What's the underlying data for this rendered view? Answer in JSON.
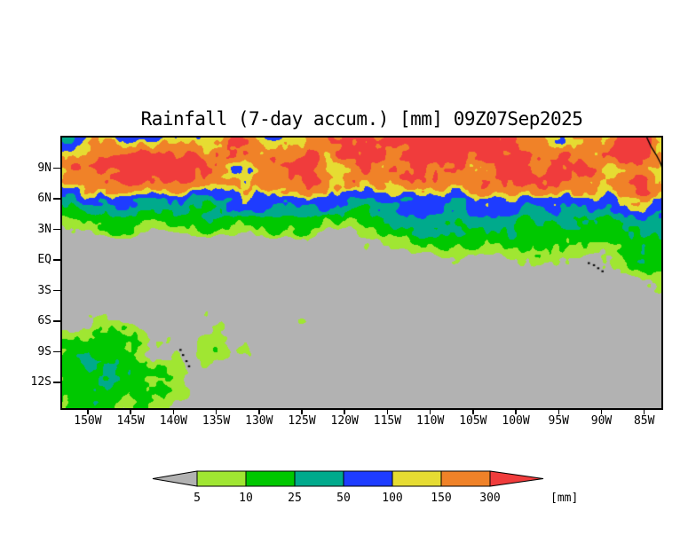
{
  "title": "Rainfall (7-day accum.) [mm] 09Z07Sep2025",
  "colors": {
    "page_bg": "#ffffff",
    "map_bg": "#b2b2b2",
    "frame": "#000000",
    "text": "#000000"
  },
  "axes": {
    "lat_ticks": [
      {
        "label": "9N",
        "lat": 9
      },
      {
        "label": "6N",
        "lat": 6
      },
      {
        "label": "3N",
        "lat": 3
      },
      {
        "label": "EQ",
        "lat": 0
      },
      {
        "label": "3S",
        "lat": -3
      },
      {
        "label": "6S",
        "lat": -6
      },
      {
        "label": "9S",
        "lat": -9
      },
      {
        "label": "12S",
        "lat": -12
      }
    ],
    "lon_ticks": [
      {
        "label": "150W",
        "lon": -150
      },
      {
        "label": "145W",
        "lon": -145
      },
      {
        "label": "140W",
        "lon": -140
      },
      {
        "label": "135W",
        "lon": -135
      },
      {
        "label": "130W",
        "lon": -130
      },
      {
        "label": "125W",
        "lon": -125
      },
      {
        "label": "120W",
        "lon": -120
      },
      {
        "label": "115W",
        "lon": -115
      },
      {
        "label": "110W",
        "lon": -110
      },
      {
        "label": "105W",
        "lon": -105
      },
      {
        "label": "100W",
        "lon": -100
      },
      {
        "label": "95W",
        "lon": -95
      },
      {
        "label": "90W",
        "lon": -90
      },
      {
        "label": "85W",
        "lon": -85
      }
    ]
  },
  "chart_data": {
    "type": "heatmap",
    "title": "Rainfall (7-day accum.) [mm] 09Z07Sep2025",
    "variable": "Rainfall (7-day accum.)",
    "units": "mm",
    "valid_time": "09Z07Sep2025",
    "lon_range": [
      -153,
      -83
    ],
    "lat_range": [
      -14.5,
      12
    ],
    "grid_on": false,
    "levels_mm": [
      5,
      10,
      25,
      50,
      100,
      150,
      300
    ],
    "palette": [
      {
        "range": "< 5",
        "color": "#b2b2b2"
      },
      {
        "range": "5-10",
        "color": "#a0e632"
      },
      {
        "range": "10-25",
        "color": "#00c800"
      },
      {
        "range": "25-50",
        "color": "#00aa8c"
      },
      {
        "range": "50-100",
        "color": "#1e3cff"
      },
      {
        "range": "100-150",
        "color": "#e6dc32"
      },
      {
        "range": "150-300",
        "color": "#f08228"
      },
      {
        "range": "> 300",
        "color": "#f03c3c"
      }
    ],
    "colorbar": {
      "labels": [
        "5",
        "10",
        "25",
        "50",
        "100",
        "150",
        "300"
      ],
      "units_label": "[mm]"
    },
    "grid": {
      "lon_start": -153,
      "lon_step": 5,
      "lat_start": 12,
      "lat_step": -2,
      "values_mm": [
        [
          70,
          180,
          90,
          200,
          160,
          120,
          250,
          300,
          200,
          350,
          400,
          300,
          250,
          300,
          250
        ],
        [
          150,
          250,
          350,
          280,
          220,
          320,
          280,
          350,
          300,
          400,
          450,
          350,
          300,
          400,
          350
        ],
        [
          90,
          180,
          280,
          320,
          180,
          250,
          320,
          280,
          350,
          300,
          280,
          250,
          320,
          350,
          300
        ],
        [
          35,
          55,
          70,
          75,
          65,
          60,
          70,
          80,
          85,
          75,
          70,
          65,
          80,
          90,
          80
        ],
        [
          8,
          14,
          18,
          15,
          12,
          14,
          16,
          18,
          25,
          30,
          22,
          18,
          28,
          35,
          50
        ],
        [
          2,
          2,
          3,
          2,
          2,
          3,
          3,
          4,
          8,
          14,
          12,
          10,
          15,
          20,
          20
        ],
        [
          1,
          1,
          1,
          1,
          1,
          1,
          1,
          2,
          2,
          3,
          3,
          3,
          5,
          8,
          12
        ],
        [
          1,
          1,
          1,
          1,
          1,
          1,
          1,
          1,
          1,
          1,
          1,
          2,
          2,
          3,
          4
        ],
        [
          1,
          1,
          1,
          2,
          2,
          2,
          2,
          1,
          1,
          1,
          1,
          1,
          1,
          2,
          2
        ],
        [
          3,
          4,
          3,
          2,
          2,
          3,
          2,
          2,
          1,
          1,
          1,
          1,
          1,
          1,
          1
        ],
        [
          8,
          12,
          9,
          5,
          2,
          2,
          2,
          1,
          1,
          1,
          1,
          1,
          1,
          1,
          1
        ],
        [
          12,
          16,
          10,
          6,
          2,
          1,
          1,
          1,
          1,
          1,
          1,
          1,
          1,
          1,
          1
        ],
        [
          10,
          18,
          12,
          4,
          2,
          1,
          1,
          1,
          1,
          1,
          1,
          1,
          1,
          1,
          1
        ],
        [
          7,
          14,
          9,
          3,
          1,
          1,
          1,
          1,
          1,
          1,
          1,
          1,
          1,
          1,
          1
        ]
      ]
    },
    "map_overlays": {
      "coastline": [
        [
          [
            -84.7,
            12.0
          ],
          [
            -84.2,
            11.1
          ],
          [
            -83.6,
            10.3
          ],
          [
            -83.1,
            9.5
          ],
          [
            -82.8,
            8.7
          ]
        ]
      ],
      "islands": [
        {
          "name": "galapagos",
          "points": [
            [
              -91.5,
              -0.3
            ],
            [
              -90.9,
              -0.5
            ],
            [
              -90.4,
              -0.8
            ],
            [
              -89.9,
              -1.1
            ]
          ]
        },
        {
          "name": "marquesas",
          "points": [
            [
              -139.2,
              -8.8
            ],
            [
              -138.9,
              -9.3
            ],
            [
              -138.5,
              -9.9
            ],
            [
              -138.2,
              -10.4
            ]
          ]
        }
      ]
    }
  }
}
